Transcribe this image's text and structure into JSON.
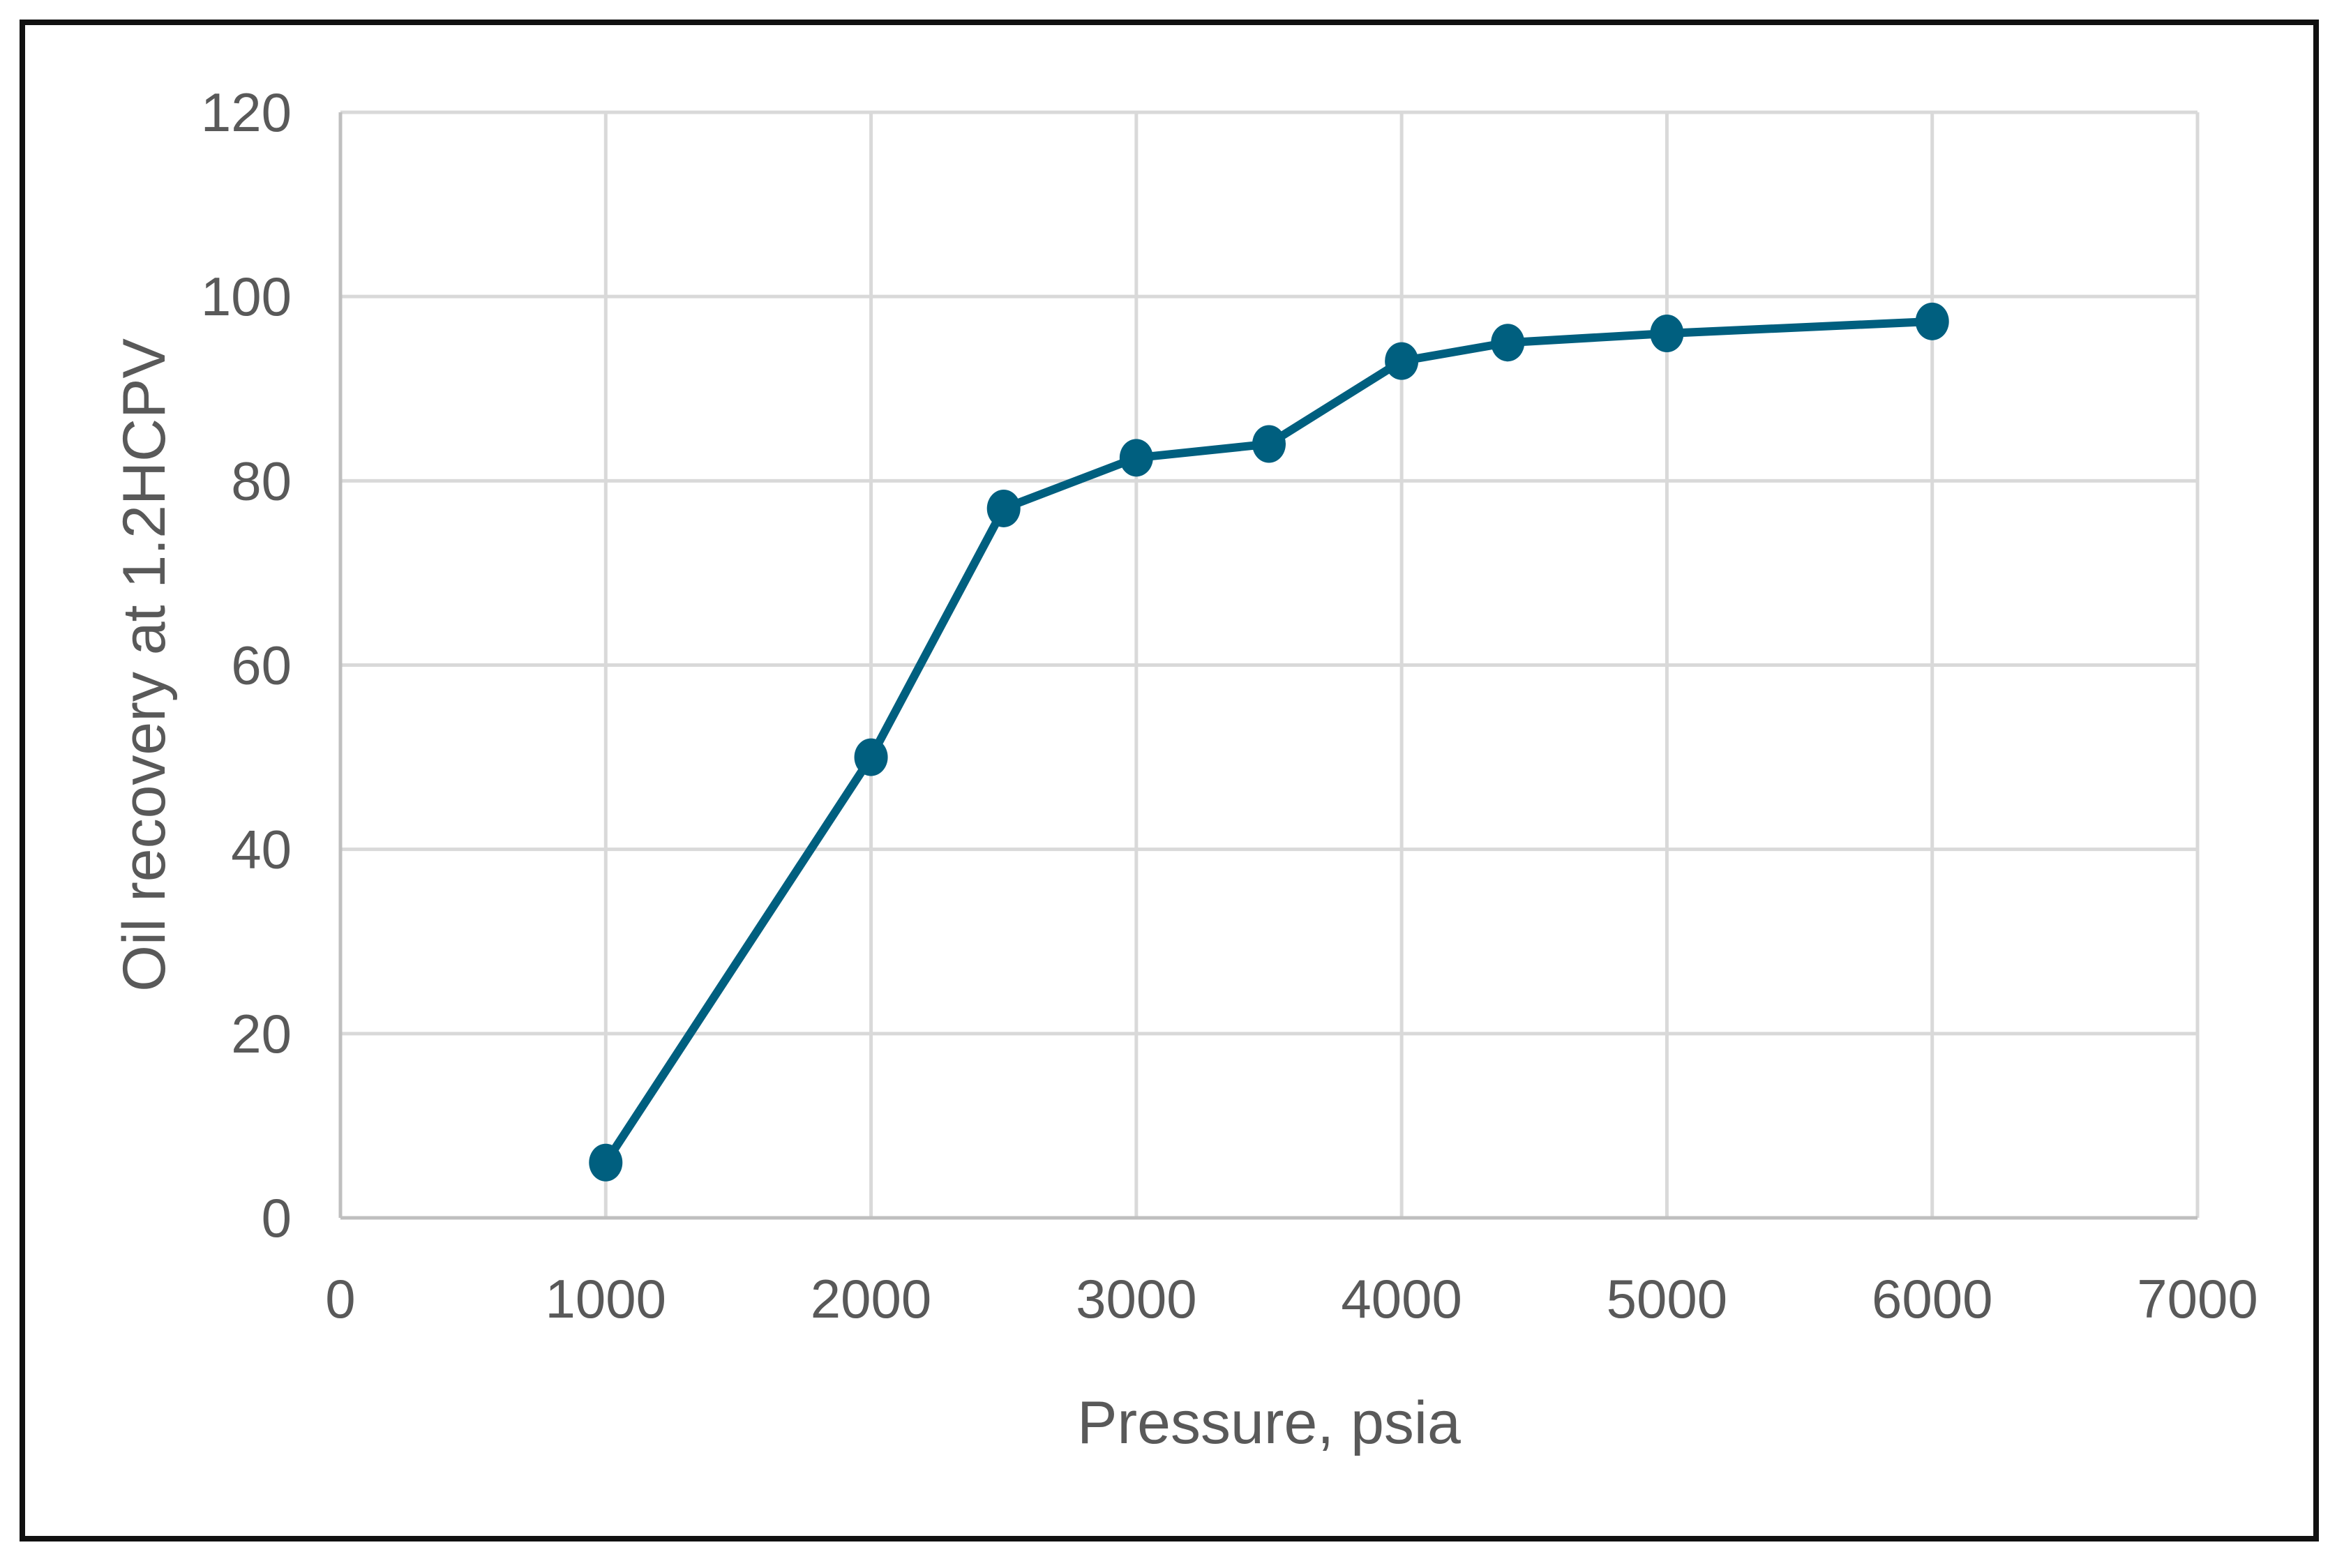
{
  "chart_data": {
    "type": "line",
    "title": "",
    "xlabel": "Pressure, psia",
    "ylabel": "Oil recovery at 1.2HCPV",
    "xlim": [
      0,
      7000
    ],
    "ylim": [
      0,
      120
    ],
    "x_ticks": [
      0,
      1000,
      2000,
      3000,
      4000,
      5000,
      6000,
      7000
    ],
    "y_ticks": [
      0,
      20,
      40,
      60,
      80,
      100,
      120
    ],
    "grid": true,
    "legend": "none",
    "series": [
      {
        "color": "#005f7f",
        "x": [
          1000,
          2000,
          2500,
          3000,
          3500,
          4000,
          4400,
          5000,
          6000
        ],
        "y": [
          6,
          50,
          77,
          82.5,
          84,
          93,
          95,
          96,
          97.3
        ]
      }
    ]
  }
}
